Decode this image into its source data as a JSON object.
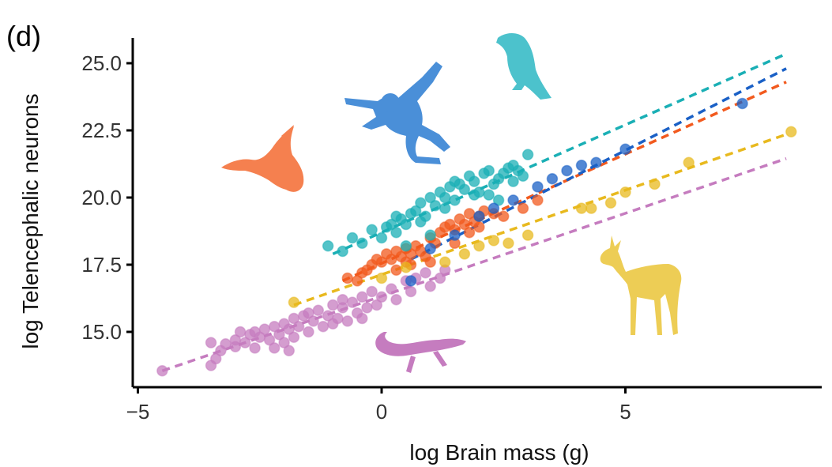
{
  "chart_data": {
    "type": "scatter",
    "panel_label": "(d)",
    "title": "",
    "xlabel": "log Brain mass (g)",
    "ylabel": "log Telencephalic neurons",
    "xlim": [
      -5.1,
      9.0
    ],
    "ylim": [
      12.8,
      26.0
    ],
    "x_ticks": [
      -5,
      0,
      5
    ],
    "x_tick_labels": [
      "−5",
      "0",
      "5"
    ],
    "y_ticks": [
      15,
      17.5,
      20,
      22.5,
      25
    ],
    "y_tick_labels": [
      "15.0",
      "17.5",
      "20.0",
      "22.5",
      "25.0"
    ],
    "grid": false,
    "legend": "none",
    "series": [
      {
        "group": "reptiles",
        "icon": "lizard-silhouette",
        "color": "#c57cbf",
        "fit": {
          "x": [
            -4.5,
            8.3
          ],
          "y": [
            13.55,
            21.45
          ]
        },
        "points": [
          [
            -4.5,
            13.55
          ],
          [
            -3.5,
            13.75
          ],
          [
            -3.5,
            14.6
          ],
          [
            -3.3,
            14.3
          ],
          [
            -3.2,
            14.55
          ],
          [
            -3.0,
            14.45
          ],
          [
            -3.0,
            14.7
          ],
          [
            -2.8,
            14.6
          ],
          [
            -2.7,
            14.9
          ],
          [
            -2.6,
            15.0
          ],
          [
            -2.5,
            14.8
          ],
          [
            -2.4,
            15.1
          ],
          [
            -2.3,
            14.7
          ],
          [
            -2.2,
            15.2
          ],
          [
            -2.1,
            14.9
          ],
          [
            -2.0,
            15.3
          ],
          [
            -2.0,
            14.6
          ],
          [
            -1.9,
            15.1
          ],
          [
            -1.8,
            15.5
          ],
          [
            -1.8,
            14.8
          ],
          [
            -1.7,
            15.2
          ],
          [
            -1.6,
            15.6
          ],
          [
            -1.5,
            15.0
          ],
          [
            -1.4,
            15.4
          ],
          [
            -1.3,
            15.8
          ],
          [
            -1.2,
            15.2
          ],
          [
            -1.1,
            15.6
          ],
          [
            -1.0,
            16.0
          ],
          [
            -1.0,
            15.3
          ],
          [
            -0.9,
            15.5
          ],
          [
            -0.8,
            15.9
          ],
          [
            -0.7,
            15.4
          ],
          [
            -0.6,
            16.1
          ],
          [
            -0.5,
            15.7
          ],
          [
            -0.4,
            16.3
          ],
          [
            -0.3,
            15.9
          ],
          [
            -0.2,
            16.5
          ],
          [
            -0.1,
            16.0
          ],
          [
            0.0,
            16.3
          ],
          [
            0.2,
            16.6
          ],
          [
            0.3,
            16.2
          ],
          [
            0.5,
            16.9
          ],
          [
            0.7,
            17.0
          ],
          [
            0.9,
            17.2
          ],
          [
            1.0,
            16.7
          ],
          [
            1.2,
            17.0
          ],
          [
            1.3,
            17.3
          ],
          [
            -3.4,
            14.0
          ],
          [
            -2.9,
            15.0
          ],
          [
            -2.2,
            14.4
          ],
          [
            -1.5,
            15.7
          ],
          [
            -0.8,
            16.2
          ],
          [
            -1.9,
            14.3
          ],
          [
            0.6,
            16.5
          ],
          [
            -0.4,
            15.5
          ],
          [
            -2.6,
            14.4
          ]
        ]
      },
      {
        "group": "birds-galloanserae",
        "icon": "duck-silhouette",
        "color": "#f25a1e",
        "fit": {
          "x": [
            -0.8,
            8.3
          ],
          "y": [
            16.9,
            24.3
          ]
        },
        "points": [
          [
            -0.7,
            17.0
          ],
          [
            -0.5,
            16.9
          ],
          [
            -0.4,
            17.2
          ],
          [
            -0.2,
            17.5
          ],
          [
            -0.1,
            17.7
          ],
          [
            0.0,
            17.6
          ],
          [
            0.1,
            17.9
          ],
          [
            0.2,
            17.7
          ],
          [
            0.3,
            18.0
          ],
          [
            0.4,
            17.8
          ],
          [
            0.5,
            18.1
          ],
          [
            0.6,
            17.9
          ],
          [
            0.7,
            18.2
          ],
          [
            0.8,
            18.0
          ],
          [
            0.9,
            17.8
          ],
          [
            1.0,
            18.5
          ],
          [
            1.1,
            18.3
          ],
          [
            1.2,
            18.7
          ],
          [
            1.3,
            18.9
          ],
          [
            1.4,
            19.0
          ],
          [
            1.5,
            18.8
          ],
          [
            1.6,
            19.2
          ],
          [
            1.7,
            19.0
          ],
          [
            1.8,
            18.7
          ],
          [
            1.9,
            19.1
          ],
          [
            2.0,
            19.3
          ],
          [
            2.1,
            19.5
          ],
          [
            2.3,
            19.4
          ],
          [
            2.5,
            19.3
          ],
          [
            2.9,
            19.6
          ],
          [
            3.2,
            19.9
          ],
          [
            0.3,
            17.3
          ],
          [
            0.6,
            17.5
          ],
          [
            1.0,
            17.6
          ],
          [
            1.5,
            18.3
          ],
          [
            -0.3,
            17.3
          ],
          [
            0.5,
            17.6
          ],
          [
            2.0,
            18.9
          ],
          [
            1.8,
            19.4
          ]
        ]
      },
      {
        "group": "birds-neoaves",
        "icon": "crow-silhouette",
        "color": "#1aafb5",
        "fit": {
          "x": [
            -1.0,
            8.3
          ],
          "y": [
            17.9,
            25.35
          ]
        },
        "points": [
          [
            -1.1,
            18.2
          ],
          [
            -0.8,
            18.0
          ],
          [
            -0.6,
            18.5
          ],
          [
            -0.4,
            18.3
          ],
          [
            -0.2,
            18.8
          ],
          [
            0.0,
            18.5
          ],
          [
            0.2,
            19.0
          ],
          [
            0.3,
            18.7
          ],
          [
            0.4,
            19.2
          ],
          [
            0.5,
            19.0
          ],
          [
            0.6,
            19.4
          ],
          [
            0.7,
            19.5
          ],
          [
            0.8,
            19.8
          ],
          [
            0.9,
            19.3
          ],
          [
            1.0,
            20.0
          ],
          [
            1.1,
            19.7
          ],
          [
            1.2,
            20.2
          ],
          [
            1.3,
            20.0
          ],
          [
            1.4,
            20.4
          ],
          [
            1.5,
            19.9
          ],
          [
            1.6,
            20.5
          ],
          [
            1.7,
            20.3
          ],
          [
            1.8,
            20.8
          ],
          [
            1.9,
            20.6
          ],
          [
            2.0,
            20.2
          ],
          [
            2.1,
            20.9
          ],
          [
            2.2,
            21.0
          ],
          [
            2.3,
            20.5
          ],
          [
            2.4,
            20.7
          ],
          [
            2.5,
            20.9
          ],
          [
            2.6,
            21.1
          ],
          [
            2.7,
            21.2
          ],
          [
            2.8,
            21.0
          ],
          [
            2.9,
            20.8
          ],
          [
            3.0,
            21.6
          ],
          [
            0.1,
            18.9
          ],
          [
            1.0,
            18.6
          ],
          [
            0.5,
            18.2
          ],
          [
            1.5,
            20.6
          ],
          [
            2.2,
            20.1
          ],
          [
            0.8,
            19.1
          ],
          [
            1.3,
            19.6
          ],
          [
            2.7,
            20.6
          ],
          [
            1.9,
            20.1
          ],
          [
            0.3,
            19.3
          ],
          [
            2.4,
            19.9
          ]
        ]
      },
      {
        "group": "primates",
        "icon": "gibbon-silhouette",
        "color": "#1a60c6",
        "fit": {
          "x": [
            0.6,
            8.3
          ],
          "y": [
            17.7,
            24.8
          ]
        },
        "points": [
          [
            0.6,
            16.9
          ],
          [
            1.0,
            18.1
          ],
          [
            1.5,
            18.6
          ],
          [
            2.0,
            19.3
          ],
          [
            2.3,
            19.6
          ],
          [
            2.7,
            19.9
          ],
          [
            3.2,
            20.4
          ],
          [
            3.5,
            20.7
          ],
          [
            3.8,
            21.0
          ],
          [
            4.1,
            21.2
          ],
          [
            4.4,
            21.3
          ],
          [
            5.0,
            21.8
          ],
          [
            7.4,
            23.5
          ]
        ]
      },
      {
        "group": "ungulates",
        "icon": "gazelle-silhouette",
        "color": "#e8b91e",
        "fit": {
          "x": [
            -1.8,
            8.3
          ],
          "y": [
            16.0,
            22.35
          ]
        },
        "points": [
          [
            -1.8,
            16.1
          ],
          [
            0.0,
            17.0
          ],
          [
            0.5,
            17.4
          ],
          [
            1.3,
            17.6
          ],
          [
            1.7,
            17.9
          ],
          [
            2.0,
            18.2
          ],
          [
            2.3,
            18.4
          ],
          [
            2.6,
            18.3
          ],
          [
            3.0,
            18.6
          ],
          [
            4.1,
            19.6
          ],
          [
            4.3,
            19.6
          ],
          [
            4.7,
            19.8
          ],
          [
            5.0,
            20.2
          ],
          [
            5.6,
            20.5
          ],
          [
            6.3,
            21.3
          ],
          [
            8.4,
            22.45
          ]
        ]
      }
    ]
  }
}
